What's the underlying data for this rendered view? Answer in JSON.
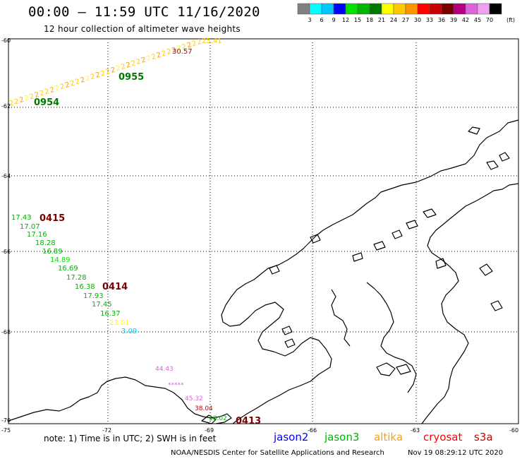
{
  "title": "00:00 – 11:59 UTC 11/16/2020",
  "subtitle": "12 hour collection of altimeter wave heights",
  "legend": {
    "colors": [
      "#808080",
      "#00ffff",
      "#00c8ff",
      "#0000ff",
      "#00e100",
      "#00b400",
      "#007800",
      "#ffff00",
      "#ffc800",
      "#ff9600",
      "#ff0000",
      "#c80000",
      "#780000",
      "#b4007f",
      "#dc64dc",
      "#f0a0f0",
      "#000000"
    ],
    "labels": [
      "3",
      "6",
      "9",
      "12",
      "15",
      "18",
      "21",
      "24",
      "27",
      "30",
      "33",
      "36",
      "39",
      "42",
      "45",
      "70"
    ],
    "unit": "(ft)"
  },
  "axes": {
    "lat_labels": [
      "-60",
      "-62",
      "-64",
      "-66",
      "-68",
      "-70"
    ],
    "lon_labels": [
      "-75",
      "-72",
      "-69",
      "-66",
      "-63",
      "-60"
    ]
  },
  "tracks": [
    {
      "label": "0955",
      "color": "#007800"
    },
    {
      "label": "0954",
      "color": "#007800"
    },
    {
      "label": "0415",
      "color": "#780000"
    },
    {
      "label": "0414",
      "color": "#780000"
    },
    {
      "label": "0413",
      "color": "#780000"
    }
  ],
  "peak_labels": [
    {
      "text": "30.57",
      "color": "#c80000"
    },
    {
      "text": "25.41",
      "color": "#ffc800"
    }
  ],
  "swh_pass_0415": [
    {
      "text": "17.43",
      "color": "#00b400"
    },
    {
      "text": "17.07",
      "color": "#00b400"
    },
    {
      "text": "17.16",
      "color": "#00b400"
    },
    {
      "text": "18.28",
      "color": "#00b400"
    },
    {
      "text": "16.89",
      "color": "#00b400"
    },
    {
      "text": "14.89",
      "color": "#00e100"
    },
    {
      "text": "16.69",
      "color": "#00b400"
    },
    {
      "text": "17.28",
      "color": "#00b400"
    },
    {
      "text": "16.38",
      "color": "#00b400"
    },
    {
      "text": "17.93",
      "color": "#00b400"
    },
    {
      "text": "17.45",
      "color": "#00b400"
    },
    {
      "text": "16.37",
      "color": "#00b400"
    },
    {
      "text": "23.01",
      "color": "#ffff00"
    },
    {
      "text": "3.09",
      "color": "#00c8ff"
    }
  ],
  "swh_pass_0413": [
    {
      "text": "44.43",
      "color": "#dc64dc"
    },
    {
      "text": "*****",
      "color": "#dc64dc"
    },
    {
      "text": "45.32",
      "color": "#dc64dc"
    },
    {
      "text": "38.04",
      "color": "#c80000"
    },
    {
      "text": "18.02",
      "color": "#00b400"
    }
  ],
  "footer": {
    "note": "note: 1) Time is in UTC; 2) SWH is in feet",
    "missions": [
      {
        "name": "jason2",
        "color": "#0000ff"
      },
      {
        "name": "jason3",
        "color": "#00b400"
      },
      {
        "name": "altika",
        "color": "#ffa000"
      },
      {
        "name": "cryosat",
        "color": "#ff0000"
      },
      {
        "name": "s3a",
        "color": "#c80000"
      }
    ],
    "credit": "NOAA/NESDIS Center for Satellite Applications and Research",
    "timestamp": "Nov 19 08:29:12 UTC 2020"
  }
}
